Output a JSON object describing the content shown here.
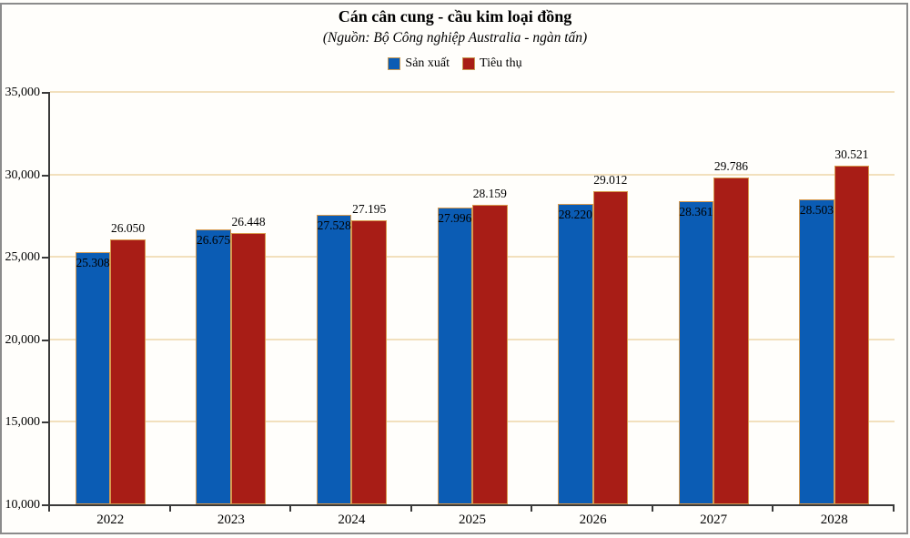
{
  "page": {
    "background_color": "#fffefb",
    "frame_border_color": "#8b8b8b"
  },
  "header": {
    "title": "Cán cân cung - cầu kim loại đồng",
    "subtitle": "(Nguồn: Bộ Công nghiệp Australia - ngàn tấn)"
  },
  "legend": {
    "items": [
      {
        "label": "Sản xuất",
        "color": "#0b5cb4"
      },
      {
        "label": "Tiêu thụ",
        "color": "#a81d16"
      }
    ]
  },
  "chart_data": {
    "type": "bar",
    "title": "Cán cân cung - cầu kim loại đồng",
    "subtitle": "(Nguồn: Bộ Công nghiệp Australia - ngàn tấn)",
    "categories": [
      "2022",
      "2023",
      "2024",
      "2025",
      "2026",
      "2027",
      "2028"
    ],
    "series": [
      {
        "name": "Sản xuất",
        "color": "#0b5cb4",
        "values": [
          25308,
          26675,
          27528,
          27996,
          28220,
          28361,
          28503
        ],
        "labels": [
          "25.308",
          "26.675",
          "27.528",
          "27.996",
          "28.220",
          "28.361",
          "28.503"
        ],
        "label_position": "inside-top"
      },
      {
        "name": "Tiêu thụ",
        "color": "#a81d16",
        "values": [
          26050,
          26448,
          27195,
          28159,
          29012,
          29786,
          30521
        ],
        "labels": [
          "26.050",
          "26.448",
          "27.195",
          "28.159",
          "29.012",
          "29.786",
          "30.521"
        ],
        "label_position": "above"
      }
    ],
    "xlabel": "",
    "ylabel": "",
    "ylim": [
      10000,
      35000
    ],
    "yticks": [
      {
        "value": 10000,
        "label": "10,000"
      },
      {
        "value": 15000,
        "label": "15,000"
      },
      {
        "value": 20000,
        "label": "20,000"
      },
      {
        "value": 25000,
        "label": "25,000"
      },
      {
        "value": 30000,
        "label": "30,000"
      },
      {
        "value": 35000,
        "label": "35,000"
      }
    ],
    "grid": "horizontal",
    "gridline_color": "#f2e0bd",
    "axis_color": "#3a3a3a",
    "bar_outline_color": "#d89a4e",
    "legend_position": "top"
  }
}
